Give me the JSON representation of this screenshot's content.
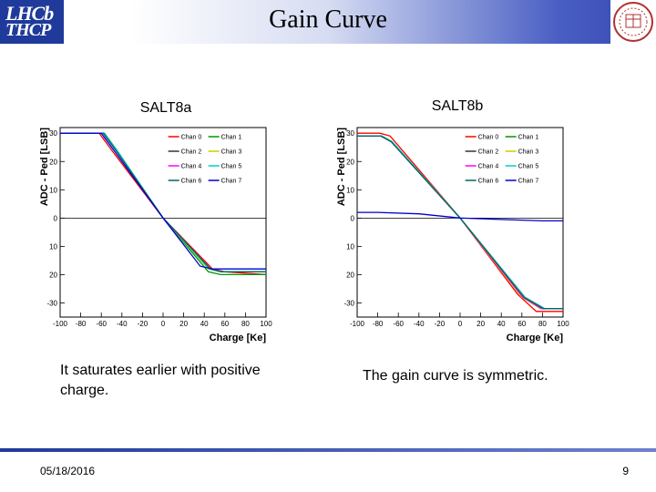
{
  "header": {
    "title": "Gain Curve",
    "logo_left_line1": "LHCb",
    "logo_left_line2": "THCP"
  },
  "plots": {
    "left_label": "SALT8a",
    "right_label": "SALT8b",
    "left_caption": "It saturates earlier with positive charge.",
    "right_caption": "The gain curve is symmetric."
  },
  "footer": {
    "date": "05/18/2016",
    "page": "9"
  },
  "colors": {
    "header_blue": "#3346b0",
    "chan0": "#ff0000",
    "chan1": "#009900",
    "chan2": "#333333",
    "chan3": "#cccc00",
    "chan4": "#ff00ff",
    "chan5": "#00cccc",
    "chan6": "#006666",
    "chan7": "#0000cc"
  },
  "chart_data": [
    {
      "type": "line",
      "xlabel": "Charge [Ke]",
      "ylabel": "ADC - Ped [LSB]",
      "xlim": [
        -100,
        100
      ],
      "ylim": [
        -35,
        32
      ],
      "xticks": [
        -100,
        -80,
        -60,
        -40,
        -20,
        0,
        20,
        40,
        60,
        80,
        100
      ],
      "yticks": [
        30,
        20,
        10,
        0,
        -10,
        -20,
        -30
      ],
      "ytick_labels": [
        "30",
        "20",
        "10",
        "0",
        "10",
        "20",
        "-30"
      ],
      "legend": "top-right",
      "series": [
        {
          "name": "Chan 0",
          "color": "#ff0000",
          "x": [
            -100,
            -62,
            -50,
            0,
            48,
            60,
            100
          ],
          "y": [
            30,
            30,
            24,
            0,
            -18,
            -19,
            -20
          ]
        },
        {
          "name": "Chan 1",
          "color": "#009900",
          "x": [
            -100,
            -57,
            -45,
            0,
            44,
            56,
            100
          ],
          "y": [
            30,
            30,
            24,
            0,
            -19,
            -20,
            -20
          ]
        },
        {
          "name": "Chan 2",
          "color": "#333333",
          "x": [
            -100,
            -58,
            -46,
            0,
            45,
            57,
            100
          ],
          "y": [
            30,
            30,
            24,
            0,
            -18,
            -19,
            -19
          ]
        },
        {
          "name": "Chan 3",
          "color": "#cccc00",
          "x": [
            -100,
            -57,
            -45,
            0,
            44,
            56,
            100
          ],
          "y": [
            30,
            30,
            24,
            0,
            -18,
            -19,
            -19
          ]
        },
        {
          "name": "Chan 4",
          "color": "#ff00ff",
          "x": [
            -100,
            -58,
            -46,
            0,
            46,
            58,
            100
          ],
          "y": [
            30,
            30,
            24,
            0,
            -18,
            -19,
            -19
          ]
        },
        {
          "name": "Chan 5",
          "color": "#00cccc",
          "x": [
            -100,
            -57,
            -45,
            0,
            45,
            56,
            100
          ],
          "y": [
            30,
            30,
            24,
            0,
            -18,
            -19,
            -19
          ]
        },
        {
          "name": "Chan 6",
          "color": "#006666",
          "x": [
            -100,
            -58,
            -46,
            0,
            46,
            57,
            100
          ],
          "y": [
            30,
            30,
            24,
            0,
            -18,
            -19,
            -19
          ]
        },
        {
          "name": "Chan 7",
          "color": "#0000cc",
          "x": [
            -100,
            -60,
            -48,
            0,
            36,
            48,
            100
          ],
          "y": [
            30,
            30,
            24,
            0,
            -17,
            -18,
            -18
          ]
        }
      ]
    },
    {
      "type": "line",
      "xlabel": "Charge [Ke]",
      "ylabel": "ADC - Ped [LSB]",
      "xlim": [
        -100,
        100
      ],
      "ylim": [
        -35,
        32
      ],
      "xticks": [
        -100,
        -80,
        -60,
        -40,
        -20,
        0,
        20,
        40,
        60,
        80,
        100
      ],
      "yticks": [
        30,
        20,
        10,
        0,
        -10,
        -20,
        -30
      ],
      "ytick_labels": [
        "30",
        "20",
        "10",
        "0",
        "10",
        "20",
        "-30"
      ],
      "legend": "top-right",
      "series": [
        {
          "name": "Chan 0",
          "color": "#ff0000",
          "x": [
            -100,
            -78,
            -68,
            0,
            56,
            74,
            100
          ],
          "y": [
            30,
            30,
            29,
            0,
            -27,
            -33,
            -33
          ]
        },
        {
          "name": "Chan 1",
          "color": "#009900",
          "x": [
            -100,
            -76,
            -66,
            0,
            63,
            82,
            100
          ],
          "y": [
            29,
            29,
            27,
            0,
            -28,
            -32,
            -32
          ]
        },
        {
          "name": "Chan 2",
          "color": "#333333",
          "x": [
            -100,
            -77,
            -67,
            0,
            62,
            80,
            100
          ],
          "y": [
            29,
            29,
            27,
            0,
            -28,
            -32,
            -32
          ]
        },
        {
          "name": "Chan 3",
          "color": "#cccc00",
          "x": [
            -100,
            -76,
            -66,
            0,
            60,
            78,
            100
          ],
          "y": [
            29,
            29,
            27,
            0,
            -28,
            -32,
            -32
          ]
        },
        {
          "name": "Chan 4",
          "color": "#ff00ff",
          "x": [
            -100,
            -77,
            -67,
            0,
            61,
            79,
            100
          ],
          "y": [
            29,
            29,
            27,
            0,
            -28,
            -32,
            -32
          ]
        },
        {
          "name": "Chan 5",
          "color": "#00cccc",
          "x": [
            -100,
            -76,
            -66,
            0,
            63,
            82,
            100
          ],
          "y": [
            29,
            29,
            27,
            0,
            -28,
            -32,
            -32
          ]
        },
        {
          "name": "Chan 6",
          "color": "#006666",
          "x": [
            -100,
            -77,
            -67,
            0,
            62,
            81,
            100
          ],
          "y": [
            29,
            29,
            27,
            0,
            -28,
            -32,
            -32
          ]
        },
        {
          "name": "Chan 7",
          "color": "#0000cc",
          "x": [
            -100,
            -80,
            -40,
            0,
            40,
            80,
            100
          ],
          "y": [
            2,
            2,
            1.5,
            0,
            -0.5,
            -1,
            -1
          ]
        }
      ]
    }
  ]
}
